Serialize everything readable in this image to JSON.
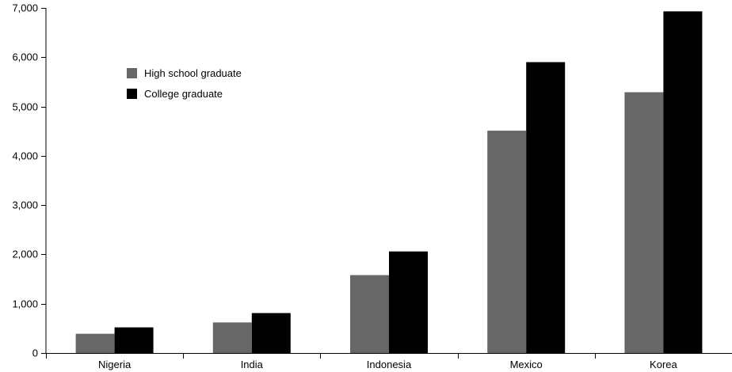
{
  "chart_data": {
    "type": "bar",
    "title": "",
    "xlabel": "",
    "ylabel": "",
    "categories": [
      "Nigeria",
      "India",
      "Indonesia",
      "Mexico",
      "Korea"
    ],
    "series": [
      {
        "name": "High school graduate",
        "color": "#676767",
        "values": [
          390,
          620,
          1580,
          4510,
          5290
        ]
      },
      {
        "name": "College graduate",
        "color": "#000000",
        "values": [
          520,
          810,
          2060,
          5900,
          6930
        ]
      }
    ],
    "ylim": [
      0,
      7000
    ],
    "yticks": [
      0,
      1000,
      2000,
      3000,
      4000,
      5000,
      6000,
      7000
    ],
    "ytick_labels": [
      "0",
      "1,000",
      "2,000",
      "3,000",
      "4,000",
      "5,000",
      "6,000",
      "7,000"
    ],
    "grid": false,
    "legend": {
      "placement": "top-left",
      "entries": [
        "High school graduate",
        "College graduate"
      ]
    }
  }
}
